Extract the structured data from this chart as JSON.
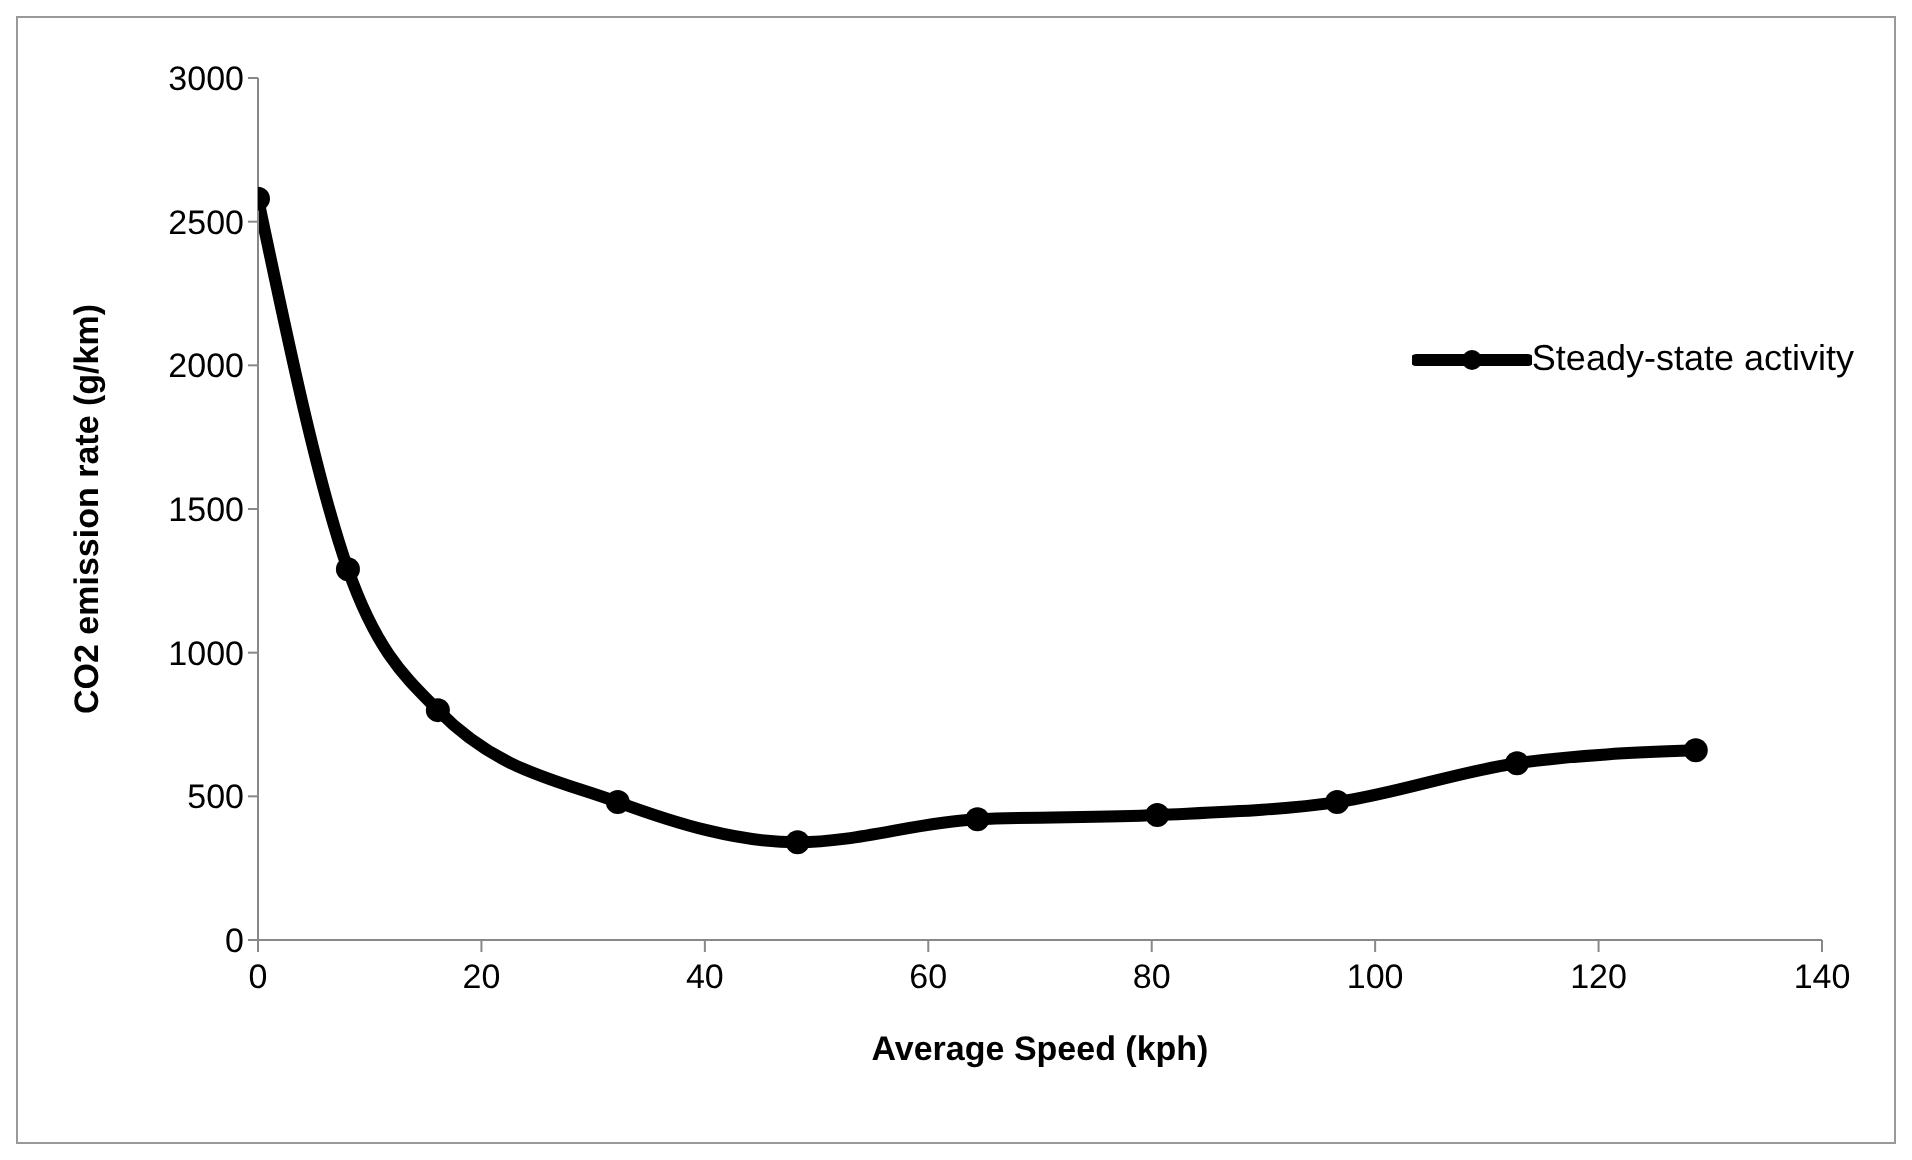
{
  "chart_data": {
    "type": "line",
    "xlabel": "Average Speed (kph)",
    "ylabel": "CO2 emission rate (g/km)",
    "x": [
      0,
      8.05,
      16.1,
      32.2,
      48.3,
      64.4,
      80.5,
      96.6,
      112.7,
      128.7
    ],
    "series": [
      {
        "name": "Steady-state activity",
        "color": "#000000",
        "values": [
          2580,
          1290,
          800,
          480,
          340,
          420,
          435,
          480,
          615,
          660
        ]
      }
    ],
    "xlim": [
      0,
      140
    ],
    "xticks": [
      0,
      20,
      40,
      60,
      80,
      100,
      120,
      140
    ],
    "ylim": [
      0,
      3000
    ],
    "yticks": [
      0,
      500,
      1000,
      1500,
      2000,
      2500,
      3000
    ],
    "grid": false,
    "legend": "top right",
    "marker": "circle",
    "line_style": "solid"
  }
}
